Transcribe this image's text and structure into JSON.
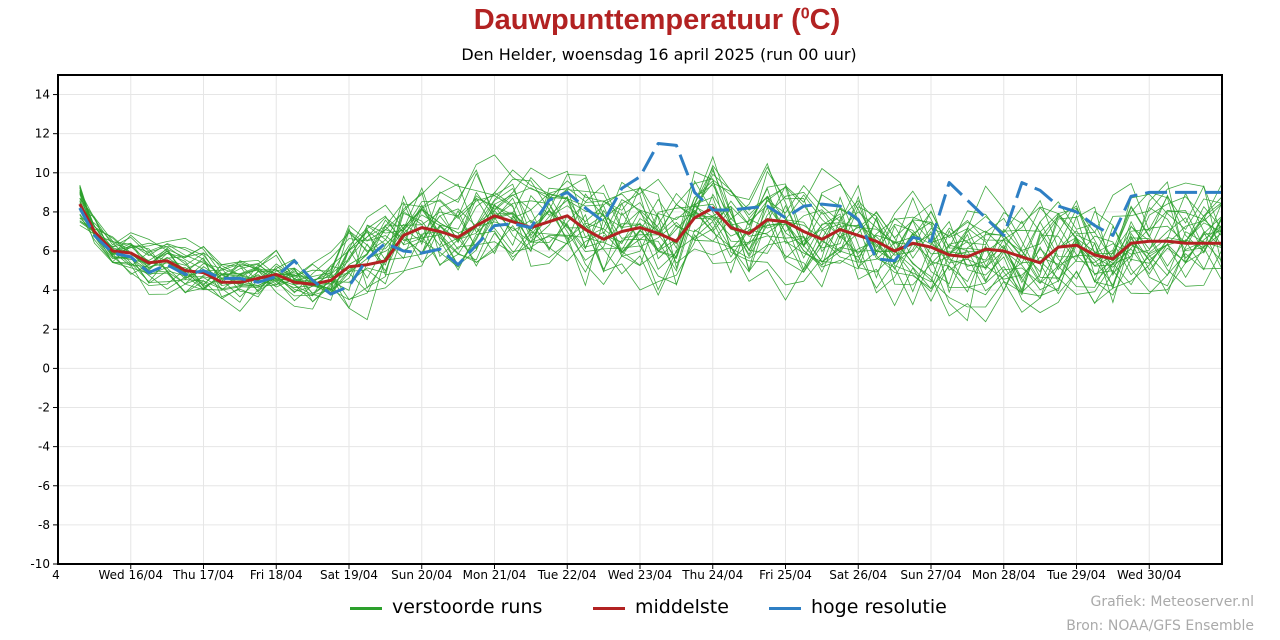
{
  "chart_data": {
    "type": "line",
    "title_main": "Dauwpunttemperatuur (",
    "title_sup": "0",
    "title_end": "C)",
    "subtitle": "Den Helder, woensdag 16 april 2025 (run 00 uur)",
    "x_first_label": "4",
    "x_tick_labels": [
      "Wed 16/04",
      "Thu 17/04",
      "Fri 18/04",
      "Sat 19/04",
      "Sun 20/04",
      "Mon 21/04",
      "Tue 22/04",
      "Wed 23/04",
      "Thu 24/04",
      "Fri 25/04",
      "Sat 26/04",
      "Sun 27/04",
      "Mon 28/04",
      "Tue 29/04",
      "Wed 30/04"
    ],
    "ylim": [
      -10,
      15
    ],
    "y_ticks": [
      -10,
      -8,
      -6,
      -4,
      -2,
      0,
      2,
      4,
      6,
      8,
      10,
      12,
      14
    ],
    "x_range_days": [
      0,
      16
    ],
    "grid": true,
    "series": [
      {
        "name": "middelste",
        "color": "#b22222",
        "x": [
          0.3,
          0.5,
          0.75,
          1.0,
          1.25,
          1.5,
          1.75,
          2.0,
          2.25,
          2.5,
          2.75,
          3.0,
          3.25,
          3.5,
          3.75,
          4.0,
          4.25,
          4.5,
          4.75,
          5.0,
          5.25,
          5.5,
          5.75,
          6.0,
          6.25,
          6.5,
          6.75,
          7.0,
          7.25,
          7.5,
          7.75,
          8.0,
          8.25,
          8.5,
          8.75,
          9.0,
          9.25,
          9.5,
          9.75,
          10.0,
          10.25,
          10.5,
          10.75,
          11.0,
          11.25,
          11.5,
          11.75,
          12.0,
          12.25,
          12.5,
          12.75,
          13.0,
          13.25,
          13.5,
          13.75,
          14.0,
          14.25,
          14.5,
          14.75,
          15.0,
          15.25,
          15.5,
          15.75,
          16.0
        ],
        "values": [
          8.4,
          7.0,
          6.0,
          5.9,
          5.4,
          5.5,
          5.0,
          4.9,
          4.4,
          4.4,
          4.6,
          4.8,
          4.4,
          4.3,
          4.5,
          5.2,
          5.3,
          5.5,
          6.8,
          7.2,
          7.0,
          6.7,
          7.3,
          7.8,
          7.5,
          7.2,
          7.5,
          7.8,
          7.1,
          6.6,
          7.0,
          7.2,
          6.9,
          6.5,
          7.7,
          8.2,
          7.2,
          6.9,
          7.6,
          7.5,
          7.0,
          6.6,
          7.1,
          6.8,
          6.5,
          6.0,
          6.4,
          6.2,
          5.8,
          5.7,
          6.1,
          6.0,
          5.7,
          5.4,
          6.2,
          6.3,
          5.8,
          5.6,
          6.4,
          6.5,
          6.5,
          6.4,
          6.4,
          6.4
        ]
      },
      {
        "name": "hoge resolutie",
        "color": "#2e7fc4",
        "x": [
          0.3,
          0.5,
          0.75,
          1.0,
          1.25,
          1.5,
          1.75,
          2.0,
          2.25,
          2.5,
          2.75,
          3.0,
          3.25,
          3.5,
          3.75,
          4.0,
          4.25,
          4.5,
          4.75,
          5.0,
          5.25,
          5.5,
          5.75,
          6.0,
          6.25,
          6.5,
          6.75,
          7.0,
          7.25,
          7.5,
          7.75,
          8.0,
          8.25,
          8.5,
          8.75,
          9.0,
          9.25,
          9.5,
          9.75,
          10.0,
          10.25,
          10.5,
          10.75,
          11.0,
          11.25,
          11.5,
          11.75,
          12.0,
          12.25,
          12.5,
          12.75,
          13.0,
          13.25,
          13.5,
          13.75,
          14.0,
          14.25,
          14.5,
          14.75,
          15.0,
          15.25,
          15.5,
          15.75,
          16.0
        ],
        "values": [
          8.2,
          6.8,
          5.9,
          5.7,
          4.9,
          5.3,
          4.8,
          5.0,
          4.6,
          4.6,
          4.4,
          4.7,
          5.5,
          4.5,
          3.8,
          4.2,
          5.6,
          6.4,
          6.0,
          5.9,
          6.1,
          5.3,
          6.3,
          7.3,
          7.4,
          7.2,
          8.6,
          9.0,
          8.2,
          7.5,
          9.2,
          9.8,
          11.5,
          11.4,
          9.0,
          8.1,
          8.1,
          8.2,
          8.3,
          7.7,
          8.3,
          8.4,
          8.3,
          7.6,
          5.6,
          5.5,
          6.7,
          6.5,
          9.5,
          8.6,
          7.7,
          6.8,
          9.5,
          9.1,
          8.3,
          8.0,
          7.3,
          6.8,
          8.8,
          9.0,
          9.0,
          9.0,
          9.0,
          9.0
        ]
      }
    ]
  },
  "legend": [
    {
      "label": "verstoorde runs",
      "color": "#2ca02c"
    },
    {
      "label": "middelste",
      "color": "#b22222"
    },
    {
      "label": "hoge resolutie",
      "color": "#2e7fc4"
    }
  ],
  "credits": {
    "line1": "Grafiek: Meteoserver.nl",
    "line2": "Bron: NOAA/GFS Ensemble"
  }
}
